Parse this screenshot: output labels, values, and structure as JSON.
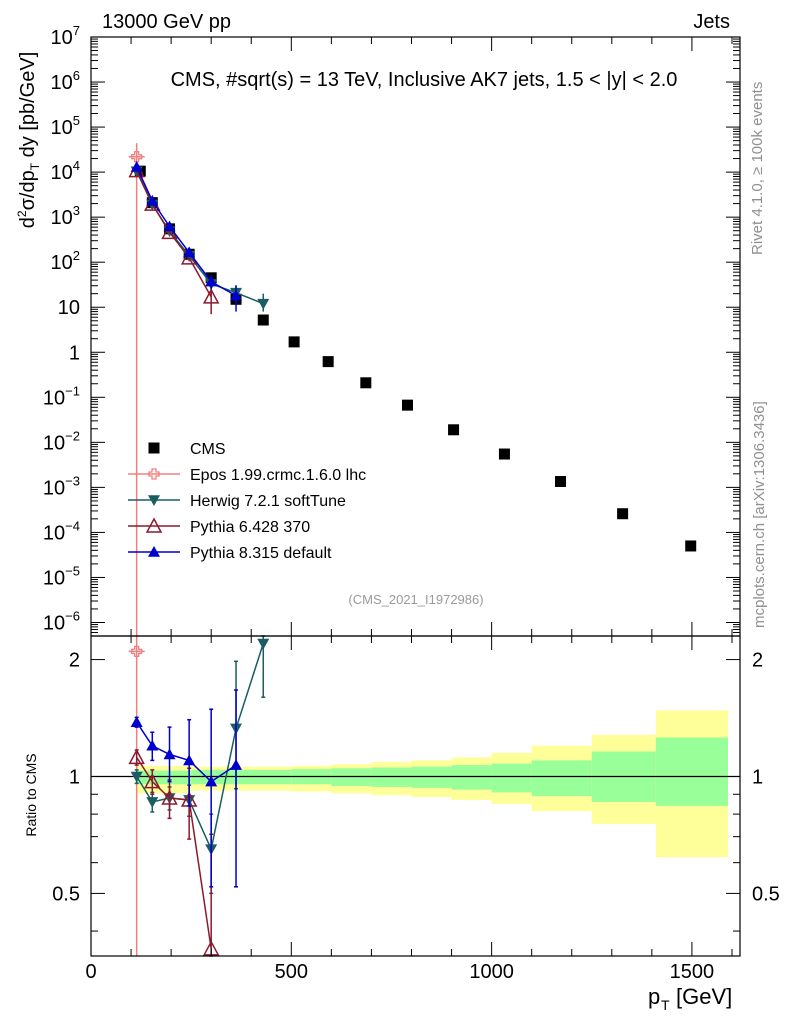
{
  "header": {
    "energy": "13000 GeV pp",
    "category": "Jets"
  },
  "side": {
    "rivet": "Rivet 4.1.0, ≥ 100k events",
    "mcplots": "mcplots.cern.ch [arXiv:1306.3436]"
  },
  "chart_data": {
    "type": "scatter",
    "title": "CMS, #sqrt(s) = 13 TeV, Inclusive AK7 jets, 1.5 < |y| < 2.0",
    "analysis_id": "(CMS_2021_I1972986)",
    "xlabel_main": "p",
    "xlabel_sub": "T",
    "xlabel_unit": "[GeV]",
    "ylabel": "d²σ/dp_T dy [pb/GeV]",
    "ratio_ylabel": "Ratio to CMS",
    "xlim": [
      0,
      1620
    ],
    "ylim_log10": [
      -6.3,
      7
    ],
    "ratio_ylim": [
      0.345,
      2.3
    ],
    "x_ticks": [
      0,
      500,
      1000,
      1500
    ],
    "x_tick_labels": [
      "0",
      "500",
      "1000",
      "1500"
    ],
    "y_ticks": [
      {
        "exp": 7,
        "label": "10",
        "sup": "7"
      },
      {
        "exp": 6,
        "label": "10",
        "sup": "6"
      },
      {
        "exp": 5,
        "label": "10",
        "sup": "5"
      },
      {
        "exp": 4,
        "label": "10",
        "sup": "4"
      },
      {
        "exp": 3,
        "label": "10",
        "sup": "3"
      },
      {
        "exp": 2,
        "label": "10",
        "sup": "2"
      },
      {
        "exp": 1,
        "label": "10",
        "sup": ""
      },
      {
        "exp": 0,
        "label": "1",
        "sup": ""
      },
      {
        "exp": -1,
        "label": "10",
        "sup": "−1"
      },
      {
        "exp": -2,
        "label": "10",
        "sup": "−2"
      },
      {
        "exp": -3,
        "label": "10",
        "sup": "−3"
      },
      {
        "exp": -4,
        "label": "10",
        "sup": "−4"
      },
      {
        "exp": -5,
        "label": "10",
        "sup": "−5"
      },
      {
        "exp": -6,
        "label": "10",
        "sup": "−6"
      }
    ],
    "ratio_ticks": [
      {
        "v": 0.5,
        "label": "0.5"
      },
      {
        "v": 1,
        "label": "1"
      },
      {
        "v": 2,
        "label": "2"
      }
    ],
    "bins": [
      [
        114,
        133
      ],
      [
        133,
        153
      ],
      [
        153,
        174
      ],
      [
        174,
        196
      ],
      [
        196,
        220
      ],
      [
        220,
        245
      ],
      [
        245,
        272
      ],
      [
        272,
        300
      ],
      [
        300,
        330
      ],
      [
        330,
        362
      ],
      [
        362,
        395
      ],
      [
        395,
        430
      ],
      [
        430,
        468
      ],
      [
        468,
        507
      ],
      [
        507,
        548
      ],
      [
        548,
        592
      ],
      [
        592,
        638
      ],
      [
        638,
        686
      ],
      [
        686,
        737
      ],
      [
        737,
        790
      ],
      [
        790,
        846
      ],
      [
        846,
        905
      ],
      [
        905,
        967
      ],
      [
        967,
        1032
      ],
      [
        1032,
        1101
      ],
      [
        1101,
        1172
      ],
      [
        1172,
        1248
      ],
      [
        1248,
        1327
      ],
      [
        1327,
        1410
      ],
      [
        1410,
        1497
      ],
      [
        1497,
        1588
      ]
    ],
    "band_rows": [
      {
        "x0": 114,
        "x1": 250,
        "yellow": [
          0.905,
          1.065
        ],
        "green": [
          0.955,
          1.035
        ]
      },
      {
        "x0": 250,
        "x1": 500,
        "yellow": [
          0.92,
          1.06
        ],
        "green": [
          0.955,
          1.04
        ]
      },
      {
        "x0": 500,
        "x1": 600,
        "yellow": [
          0.915,
          1.065
        ],
        "green": [
          0.955,
          1.045
        ]
      },
      {
        "x0": 600,
        "x1": 700,
        "yellow": [
          0.905,
          1.075
        ],
        "green": [
          0.945,
          1.05
        ]
      },
      {
        "x0": 700,
        "x1": 800,
        "yellow": [
          0.895,
          1.09
        ],
        "green": [
          0.94,
          1.055
        ]
      },
      {
        "x0": 800,
        "x1": 900,
        "yellow": [
          0.885,
          1.1
        ],
        "green": [
          0.935,
          1.06
        ]
      },
      {
        "x0": 900,
        "x1": 1000,
        "yellow": [
          0.87,
          1.12
        ],
        "green": [
          0.925,
          1.07
        ]
      },
      {
        "x0": 1000,
        "x1": 1100,
        "yellow": [
          0.85,
          1.15
        ],
        "green": [
          0.91,
          1.08
        ]
      },
      {
        "x0": 1100,
        "x1": 1250,
        "yellow": [
          0.815,
          1.2
        ],
        "green": [
          0.89,
          1.1
        ]
      },
      {
        "x0": 1250,
        "x1": 1410,
        "yellow": [
          0.755,
          1.28
        ],
        "green": [
          0.86,
          1.16
        ]
      },
      {
        "x0": 1410,
        "x1": 1590,
        "yellow": [
          0.62,
          1.48
        ],
        "green": [
          0.84,
          1.26
        ]
      }
    ],
    "series": [
      {
        "name": "CMS",
        "color": "#000000",
        "marker": "square",
        "x": [
          123,
          153,
          196,
          245,
          300,
          362,
          430,
          507,
          592,
          686,
          790,
          905,
          1032,
          1172,
          1327,
          1497
        ],
        "y": [
          10500,
          2100,
          550,
          150,
          45,
          15,
          5.2,
          1.7,
          0.62,
          0.21,
          0.067,
          0.019,
          0.0055,
          0.00135,
          0.00026,
          5e-05
        ]
      },
      {
        "name": "Epos 1.99.crmc.1.6.0 lhc",
        "color": "#f08080",
        "marker": "cross",
        "x": [
          114
        ],
        "y": [
          22000
        ],
        "yerr_lo": [
          21999
        ],
        "yerr_hi": [
          22000
        ],
        "ratio": [
          2.1
        ],
        "ratio_lo": [
          0.3
        ],
        "ratio_hi": [
          2.1
        ],
        "ratio_xerr": [
          5
        ]
      },
      {
        "name": "Herwig 7.2.1 softTune",
        "color": "#1a5e63",
        "marker": "triangle-down",
        "x": [
          114,
          153,
          196,
          245,
          300,
          362,
          430
        ],
        "y": [
          10400,
          1900,
          490,
          140,
          33,
          21,
          12
        ],
        "yerr_lo": [
          500,
          120,
          40,
          15,
          6,
          8,
          4
        ],
        "yerr_hi": [
          500,
          120,
          40,
          15,
          6,
          10,
          8
        ],
        "ratio": [
          1.0,
          0.86,
          0.88,
          0.87,
          0.65,
          1.33,
          2.2
        ],
        "ratio_lo": [
          0.04,
          0.05,
          0.06,
          0.08,
          0.15,
          0.4,
          0.6
        ],
        "ratio_hi": [
          0.04,
          0.05,
          0.06,
          0.08,
          0.15,
          0.65,
          0.6
        ]
      },
      {
        "name": "Pythia 6.428 370",
        "color": "#8b1a2e",
        "marker": "triangle-up-open",
        "x": [
          114,
          153,
          196,
          245,
          300
        ],
        "y": [
          10800,
          1950,
          460,
          125,
          17
        ],
        "yerr_lo": [
          500,
          120,
          40,
          20,
          10
        ],
        "yerr_hi": [
          500,
          120,
          40,
          20,
          10
        ],
        "ratio": [
          1.12,
          0.97,
          0.88,
          0.87,
          0.36
        ],
        "ratio_lo": [
          0.05,
          0.07,
          0.1,
          0.18,
          0.35
        ],
        "ratio_hi": [
          0.05,
          0.07,
          0.1,
          0.18,
          0.35
        ]
      },
      {
        "name": "Pythia 8.315 default",
        "color": "#0000cc",
        "marker": "triangle-up",
        "x": [
          114,
          153,
          196,
          245,
          300,
          362
        ],
        "y": [
          13000,
          2300,
          620,
          165,
          37,
          18
        ],
        "yerr_lo": [
          600,
          150,
          50,
          20,
          12,
          10
        ],
        "yerr_hi": [
          600,
          150,
          50,
          20,
          15,
          12
        ],
        "ratio": [
          1.38,
          1.2,
          1.14,
          1.1,
          0.97,
          1.07
        ],
        "ratio_lo": [
          0.04,
          0.1,
          0.17,
          0.26,
          0.45,
          0.55
        ],
        "ratio_hi": [
          0.04,
          0.1,
          0.2,
          0.3,
          0.52,
          0.6
        ]
      }
    ]
  }
}
